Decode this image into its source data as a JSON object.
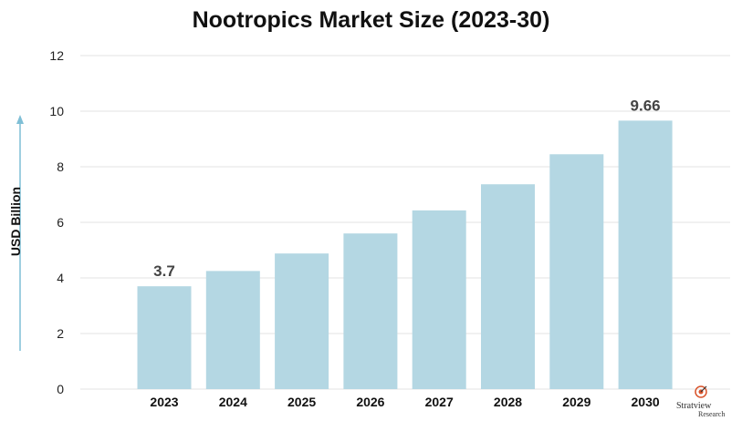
{
  "chart_data": {
    "type": "bar",
    "title": "Nootropics Market Size (2023-30)",
    "xlabel": "",
    "ylabel": "USD Billion",
    "categories": [
      "2023",
      "2024",
      "2025",
      "2026",
      "2027",
      "2028",
      "2029",
      "2030"
    ],
    "values": [
      3.7,
      4.25,
      4.88,
      5.6,
      6.43,
      7.37,
      8.45,
      9.66
    ],
    "data_labels": {
      "2023": "3.7",
      "2030": "9.66"
    },
    "ylim": [
      0,
      12
    ],
    "yticks": [
      "0",
      "2",
      "4",
      "6",
      "8",
      "10",
      "12"
    ],
    "grid": true,
    "bar_color": "#b4d7e3",
    "axis_arrow_color": "#7fbfd6"
  },
  "logo": {
    "line1": "Stratview",
    "line2": "Research"
  }
}
